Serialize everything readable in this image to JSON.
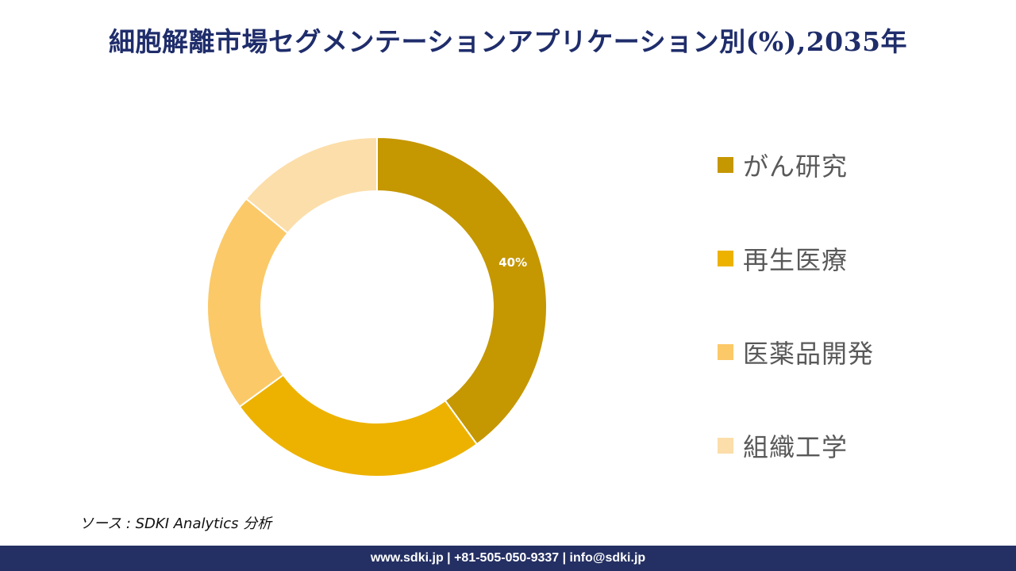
{
  "title": "細胞解離市場セグメンテーションアプリケーション別(%),2035年",
  "source": "ソース : SDKI Analytics  分析",
  "footer": "www.sdki.jp | +81-505-050-9337 | info@sdki.jp",
  "chart_data": {
    "type": "pie",
    "style": "donut",
    "categories": [
      "がん研究",
      "再生医療",
      "医薬品開発",
      "組織工学"
    ],
    "values": [
      40,
      25,
      21,
      14
    ],
    "colors": [
      "#c59700",
      "#edb200",
      "#fbc968",
      "#fcdeaa"
    ],
    "data_labels": [
      "40%",
      "",
      "",
      ""
    ],
    "legend_position": "right"
  }
}
